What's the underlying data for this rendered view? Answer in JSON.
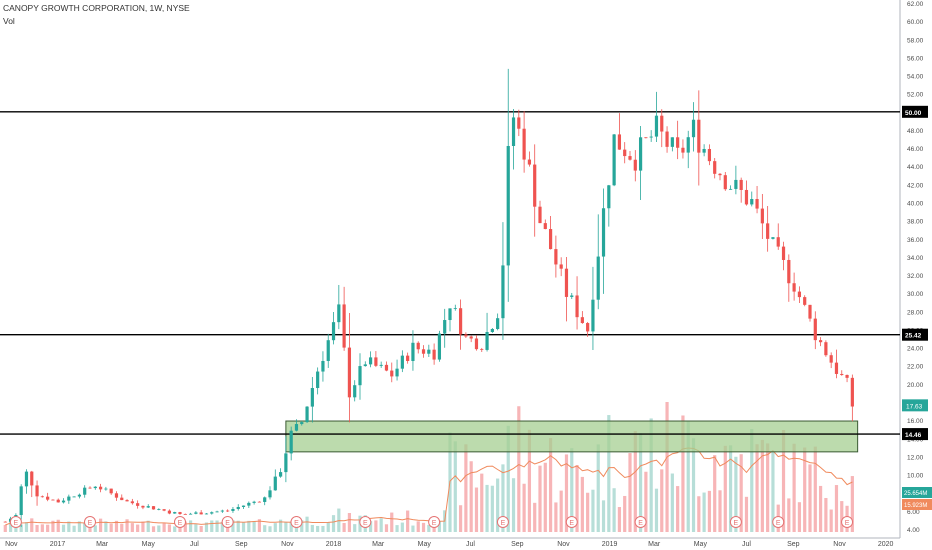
{
  "header": {
    "title": "CANOPY GROWTH CORPORATION, 1W, NYSE",
    "indicator": "Vol"
  },
  "colors": {
    "up": "#26a69a",
    "down": "#ef5350",
    "vol_up": "#b7ded8",
    "vol_down": "#f7b5b7",
    "level": "#000000",
    "zone_fill": "#a5cf92",
    "zone_border": "#3a5a33",
    "ma": "#f08a5d",
    "price_badge": "#26a69a"
  },
  "axis": {
    "y_ticks": [
      "62.00",
      "60.00",
      "58.00",
      "56.00",
      "54.00",
      "52.00",
      "50.00",
      "48.00",
      "46.00",
      "44.00",
      "42.00",
      "40.00",
      "38.00",
      "36.00",
      "34.00",
      "32.00",
      "30.00",
      "28.00",
      "26.00",
      "24.00",
      "22.00",
      "20.00",
      "18.00",
      "16.00",
      "14.00",
      "12.00",
      "10.00",
      "8.00",
      "6.00",
      "4.00"
    ],
    "x_ticks": [
      "Nov",
      "2017",
      "Mar",
      "May",
      "Jul",
      "Sep",
      "Nov",
      "2018",
      "Mar",
      "May",
      "Jul",
      "Sep",
      "Nov",
      "2019",
      "Mar",
      "May",
      "Jul",
      "Sep",
      "Nov",
      "2020"
    ]
  },
  "levels": [
    "50.00",
    "25.42",
    "14.46"
  ],
  "badges": {
    "last_price": "17.63",
    "vol_up": "25.654M",
    "vol_ma": "15.923M"
  },
  "earnings_marker": "E",
  "chart_data": {
    "type": "candlestick",
    "title": "CANOPY GROWTH CORPORATION, 1W, NYSE",
    "y_range": [
      3,
      62
    ],
    "horizontal_levels": [
      50.0,
      25.42,
      14.46
    ],
    "support_zone": [
      12.5,
      15.9
    ],
    "last_price": 17.63,
    "volume_labels": [
      "25.654M",
      "15.923M"
    ],
    "waypoints": {
      "x": [
        "2016-10-24",
        "2016-11-07",
        "2016-11-14",
        "2016-11-21",
        "2016-12-05",
        "2017-01-02",
        "2017-02-20",
        "2017-04-03",
        "2017-06-12",
        "2017-08-14",
        "2017-10-02",
        "2017-10-23",
        "2017-11-06",
        "2017-11-20",
        "2017-12-11",
        "2018-01-08",
        "2018-01-22",
        "2018-02-12",
        "2018-03-19",
        "2018-04-16",
        "2018-05-14",
        "2018-06-04",
        "2018-06-25",
        "2018-07-16",
        "2018-08-06",
        "2018-08-13",
        "2018-08-20",
        "2018-08-27",
        "2018-09-10",
        "2018-10-01",
        "2018-10-15",
        "2018-11-05",
        "2018-12-03",
        "2018-12-24",
        "2019-01-07",
        "2019-02-04",
        "2019-03-04",
        "2019-04-01",
        "2019-04-22",
        "2019-05-13",
        "2019-06-10",
        "2019-07-08",
        "2019-08-05",
        "2019-09-02",
        "2019-09-30",
        "2019-10-28",
        "2019-11-11",
        "2019-11-18"
      ],
      "close": [
        4.8,
        5.5,
        8.6,
        10.2,
        7.8,
        7.0,
        8.8,
        7.0,
        5.6,
        6.0,
        7.4,
        10.5,
        14.5,
        15.8,
        21.5,
        28.0,
        19.0,
        22.5,
        21.0,
        24.0,
        23.5,
        29.0,
        25.0,
        24.5,
        28.0,
        33.5,
        45.0,
        49.5,
        46.0,
        38.0,
        35.0,
        30.0,
        26.0,
        39.0,
        47.0,
        45.0,
        48.0,
        45.0,
        48.0,
        45.0,
        42.0,
        40.0,
        35.0,
        31.0,
        25.5,
        21.5,
        20.0,
        17.6
      ]
    }
  }
}
